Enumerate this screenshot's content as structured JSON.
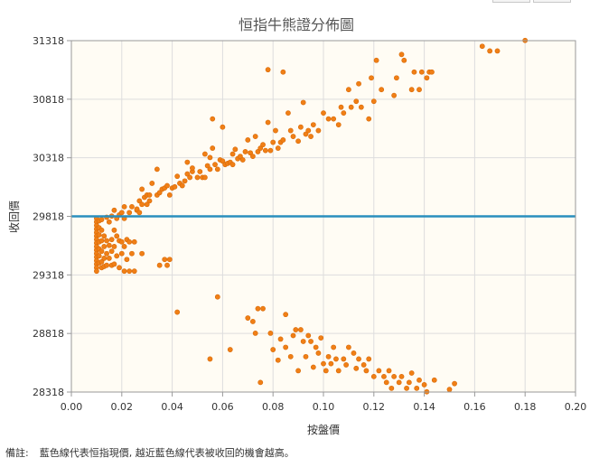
{
  "footnote": {
    "label": "備註:",
    "text": "藍色線代表恒指現價, 越近藍色線代表被收回的機會越高。"
  },
  "colors": {
    "point": "#f07f16",
    "point_edge": "#d86a08",
    "reference_line": "#2a8fbd",
    "plot_background": "#fffcf4",
    "grid": "#dddddd",
    "axis": "#999999",
    "title": "#555555",
    "tick_label": "#333333"
  },
  "chart_data": {
    "type": "scatter",
    "title": "恒指牛熊證分佈圖",
    "xlabel": "按盤價",
    "ylabel": "收回價",
    "xlim": [
      0,
      0.2
    ],
    "ylim": [
      28318,
      31318
    ],
    "x_ticks": [
      "0.00",
      "0.02",
      "0.04",
      "0.06",
      "0.08",
      "0.10",
      "0.12",
      "0.14",
      "0.16",
      "0.18",
      "0.20"
    ],
    "y_ticks": [
      "28318",
      "28818",
      "29318",
      "29818",
      "30318",
      "30818",
      "31318"
    ],
    "grid": true,
    "reference_line": {
      "axis": "y",
      "value": 29818,
      "meaning": "恒指現價"
    },
    "points": [
      [
        0.01,
        29800
      ],
      [
        0.01,
        29770
      ],
      [
        0.01,
        29740
      ],
      [
        0.01,
        29710
      ],
      [
        0.01,
        29680
      ],
      [
        0.01,
        29650
      ],
      [
        0.01,
        29620
      ],
      [
        0.01,
        29590
      ],
      [
        0.01,
        29560
      ],
      [
        0.01,
        29530
      ],
      [
        0.01,
        29500
      ],
      [
        0.01,
        29470
      ],
      [
        0.01,
        29440
      ],
      [
        0.01,
        29410
      ],
      [
        0.01,
        29380
      ],
      [
        0.01,
        29350
      ],
      [
        0.011,
        29780
      ],
      [
        0.011,
        29720
      ],
      [
        0.011,
        29660
      ],
      [
        0.011,
        29600
      ],
      [
        0.011,
        29540
      ],
      [
        0.011,
        29480
      ],
      [
        0.011,
        29420
      ],
      [
        0.012,
        29790
      ],
      [
        0.012,
        29700
      ],
      [
        0.012,
        29610
      ],
      [
        0.012,
        29520
      ],
      [
        0.012,
        29430
      ],
      [
        0.012,
        29380
      ],
      [
        0.013,
        29650
      ],
      [
        0.013,
        29560
      ],
      [
        0.013,
        29460
      ],
      [
        0.013,
        29390
      ],
      [
        0.014,
        29810
      ],
      [
        0.014,
        29610
      ],
      [
        0.014,
        29500
      ],
      [
        0.014,
        29400
      ],
      [
        0.015,
        29770
      ],
      [
        0.015,
        29570
      ],
      [
        0.015,
        29460
      ],
      [
        0.016,
        29820
      ],
      [
        0.016,
        29620
      ],
      [
        0.016,
        29520
      ],
      [
        0.016,
        29400
      ],
      [
        0.017,
        29870
      ],
      [
        0.017,
        29700
      ],
      [
        0.017,
        29560
      ],
      [
        0.017,
        29410
      ],
      [
        0.018,
        29800
      ],
      [
        0.018,
        29650
      ],
      [
        0.018,
        29480
      ],
      [
        0.019,
        29830
      ],
      [
        0.019,
        29610
      ],
      [
        0.019,
        29380
      ],
      [
        0.02,
        29850
      ],
      [
        0.02,
        29600
      ],
      [
        0.02,
        29500
      ],
      [
        0.021,
        29900
      ],
      [
        0.021,
        29800
      ],
      [
        0.021,
        29560
      ],
      [
        0.021,
        29350
      ],
      [
        0.022,
        29620
      ],
      [
        0.022,
        29450
      ],
      [
        0.023,
        29850
      ],
      [
        0.023,
        29600
      ],
      [
        0.023,
        29350
      ],
      [
        0.024,
        29900
      ],
      [
        0.024,
        29500
      ],
      [
        0.025,
        29350
      ],
      [
        0.025,
        29600
      ],
      [
        0.026,
        29870
      ],
      [
        0.026,
        29880
      ],
      [
        0.027,
        29950
      ],
      [
        0.027,
        29850
      ],
      [
        0.028,
        29920
      ],
      [
        0.028,
        29500
      ],
      [
        0.028,
        30050
      ],
      [
        0.029,
        29980
      ],
      [
        0.03,
        30000
      ],
      [
        0.03,
        29920
      ],
      [
        0.031,
        30000
      ],
      [
        0.031,
        29950
      ],
      [
        0.032,
        30100
      ],
      [
        0.034,
        30000
      ],
      [
        0.034,
        30220
      ],
      [
        0.035,
        30020
      ],
      [
        0.035,
        29400
      ],
      [
        0.036,
        30050
      ],
      [
        0.037,
        30060
      ],
      [
        0.037,
        29450
      ],
      [
        0.038,
        29400
      ],
      [
        0.038,
        30080
      ],
      [
        0.039,
        30000
      ],
      [
        0.039,
        29450
      ],
      [
        0.04,
        30060
      ],
      [
        0.041,
        30070
      ],
      [
        0.042,
        30160
      ],
      [
        0.042,
        29000
      ],
      [
        0.043,
        30100
      ],
      [
        0.044,
        30080
      ],
      [
        0.045,
        30120
      ],
      [
        0.046,
        30180
      ],
      [
        0.046,
        30280
      ],
      [
        0.047,
        30150
      ],
      [
        0.048,
        30200
      ],
      [
        0.048,
        30230
      ],
      [
        0.05,
        30150
      ],
      [
        0.051,
        30200
      ],
      [
        0.052,
        30150
      ],
      [
        0.053,
        30350
      ],
      [
        0.053,
        30150
      ],
      [
        0.054,
        30250
      ],
      [
        0.055,
        30320
      ],
      [
        0.055,
        30220
      ],
      [
        0.055,
        28600
      ],
      [
        0.056,
        30650
      ],
      [
        0.056,
        30400
      ],
      [
        0.057,
        30260
      ],
      [
        0.058,
        30220
      ],
      [
        0.058,
        29130
      ],
      [
        0.059,
        30300
      ],
      [
        0.06,
        30580
      ],
      [
        0.06,
        30290
      ],
      [
        0.061,
        30260
      ],
      [
        0.062,
        30270
      ],
      [
        0.063,
        30280
      ],
      [
        0.063,
        28680
      ],
      [
        0.064,
        30260
      ],
      [
        0.064,
        30350
      ],
      [
        0.065,
        30390
      ],
      [
        0.066,
        30310
      ],
      [
        0.067,
        30330
      ],
      [
        0.068,
        30300
      ],
      [
        0.069,
        30370
      ],
      [
        0.07,
        30470
      ],
      [
        0.07,
        28950
      ],
      [
        0.071,
        30360
      ],
      [
        0.072,
        30330
      ],
      [
        0.072,
        28920
      ],
      [
        0.073,
        30500
      ],
      [
        0.073,
        28820
      ],
      [
        0.074,
        30370
      ],
      [
        0.074,
        29030
      ],
      [
        0.075,
        30400
      ],
      [
        0.075,
        28400
      ],
      [
        0.076,
        30430
      ],
      [
        0.076,
        29030
      ],
      [
        0.077,
        30380
      ],
      [
        0.078,
        30620
      ],
      [
        0.078,
        31070
      ],
      [
        0.079,
        30380
      ],
      [
        0.079,
        28820
      ],
      [
        0.08,
        30450
      ],
      [
        0.08,
        28680
      ],
      [
        0.081,
        30550
      ],
      [
        0.082,
        30400
      ],
      [
        0.082,
        28590
      ],
      [
        0.083,
        30450
      ],
      [
        0.083,
        28770
      ],
      [
        0.084,
        31050
      ],
      [
        0.084,
        30470
      ],
      [
        0.085,
        28980
      ],
      [
        0.085,
        28700
      ],
      [
        0.086,
        30700
      ],
      [
        0.087,
        30550
      ],
      [
        0.087,
        28620
      ],
      [
        0.088,
        30500
      ],
      [
        0.088,
        28800
      ],
      [
        0.089,
        28850
      ],
      [
        0.09,
        30460
      ],
      [
        0.09,
        28500
      ],
      [
        0.091,
        30580
      ],
      [
        0.091,
        28850
      ],
      [
        0.092,
        30790
      ],
      [
        0.092,
        28750
      ],
      [
        0.093,
        30520
      ],
      [
        0.093,
        28620
      ],
      [
        0.094,
        30550
      ],
      [
        0.094,
        28800
      ],
      [
        0.095,
        30500
      ],
      [
        0.095,
        28750
      ],
      [
        0.096,
        30600
      ],
      [
        0.096,
        28530
      ],
      [
        0.097,
        28700
      ],
      [
        0.098,
        30550
      ],
      [
        0.098,
        28650
      ],
      [
        0.099,
        28780
      ],
      [
        0.1,
        30700
      ],
      [
        0.1,
        28560
      ],
      [
        0.101,
        28500
      ],
      [
        0.102,
        30650
      ],
      [
        0.102,
        28620
      ],
      [
        0.103,
        28560
      ],
      [
        0.104,
        30650
      ],
      [
        0.104,
        28700
      ],
      [
        0.105,
        28600
      ],
      [
        0.106,
        30600
      ],
      [
        0.106,
        28500
      ],
      [
        0.107,
        30750
      ],
      [
        0.108,
        28600
      ],
      [
        0.108,
        30700
      ],
      [
        0.109,
        28550
      ],
      [
        0.11,
        30900
      ],
      [
        0.11,
        28700
      ],
      [
        0.111,
        30750
      ],
      [
        0.112,
        28650
      ],
      [
        0.113,
        30800
      ],
      [
        0.113,
        28520
      ],
      [
        0.114,
        30950
      ],
      [
        0.114,
        28600
      ],
      [
        0.115,
        30750
      ],
      [
        0.116,
        28550
      ],
      [
        0.117,
        28500
      ],
      [
        0.118,
        30650
      ],
      [
        0.118,
        28600
      ],
      [
        0.119,
        31000
      ],
      [
        0.12,
        30800
      ],
      [
        0.12,
        28450
      ],
      [
        0.121,
        31150
      ],
      [
        0.122,
        28500
      ],
      [
        0.123,
        30900
      ],
      [
        0.124,
        28450
      ],
      [
        0.125,
        28400
      ],
      [
        0.126,
        28500
      ],
      [
        0.127,
        28350
      ],
      [
        0.128,
        30850
      ],
      [
        0.128,
        28450
      ],
      [
        0.129,
        31000
      ],
      [
        0.13,
        28400
      ],
      [
        0.131,
        31200
      ],
      [
        0.131,
        28450
      ],
      [
        0.132,
        31150
      ],
      [
        0.133,
        28350
      ],
      [
        0.134,
        28400
      ],
      [
        0.135,
        30900
      ],
      [
        0.135,
        28480
      ],
      [
        0.136,
        31050
      ],
      [
        0.137,
        28350
      ],
      [
        0.138,
        30900
      ],
      [
        0.138,
        28420
      ],
      [
        0.139,
        31050
      ],
      [
        0.14,
        28380
      ],
      [
        0.141,
        31000
      ],
      [
        0.141,
        28320
      ],
      [
        0.142,
        31050
      ],
      [
        0.143,
        31050
      ],
      [
        0.144,
        28420
      ],
      [
        0.15,
        28340
      ],
      [
        0.152,
        28390
      ],
      [
        0.163,
        31270
      ],
      [
        0.166,
        31230
      ],
      [
        0.169,
        31230
      ],
      [
        0.18,
        31320
      ]
    ]
  }
}
